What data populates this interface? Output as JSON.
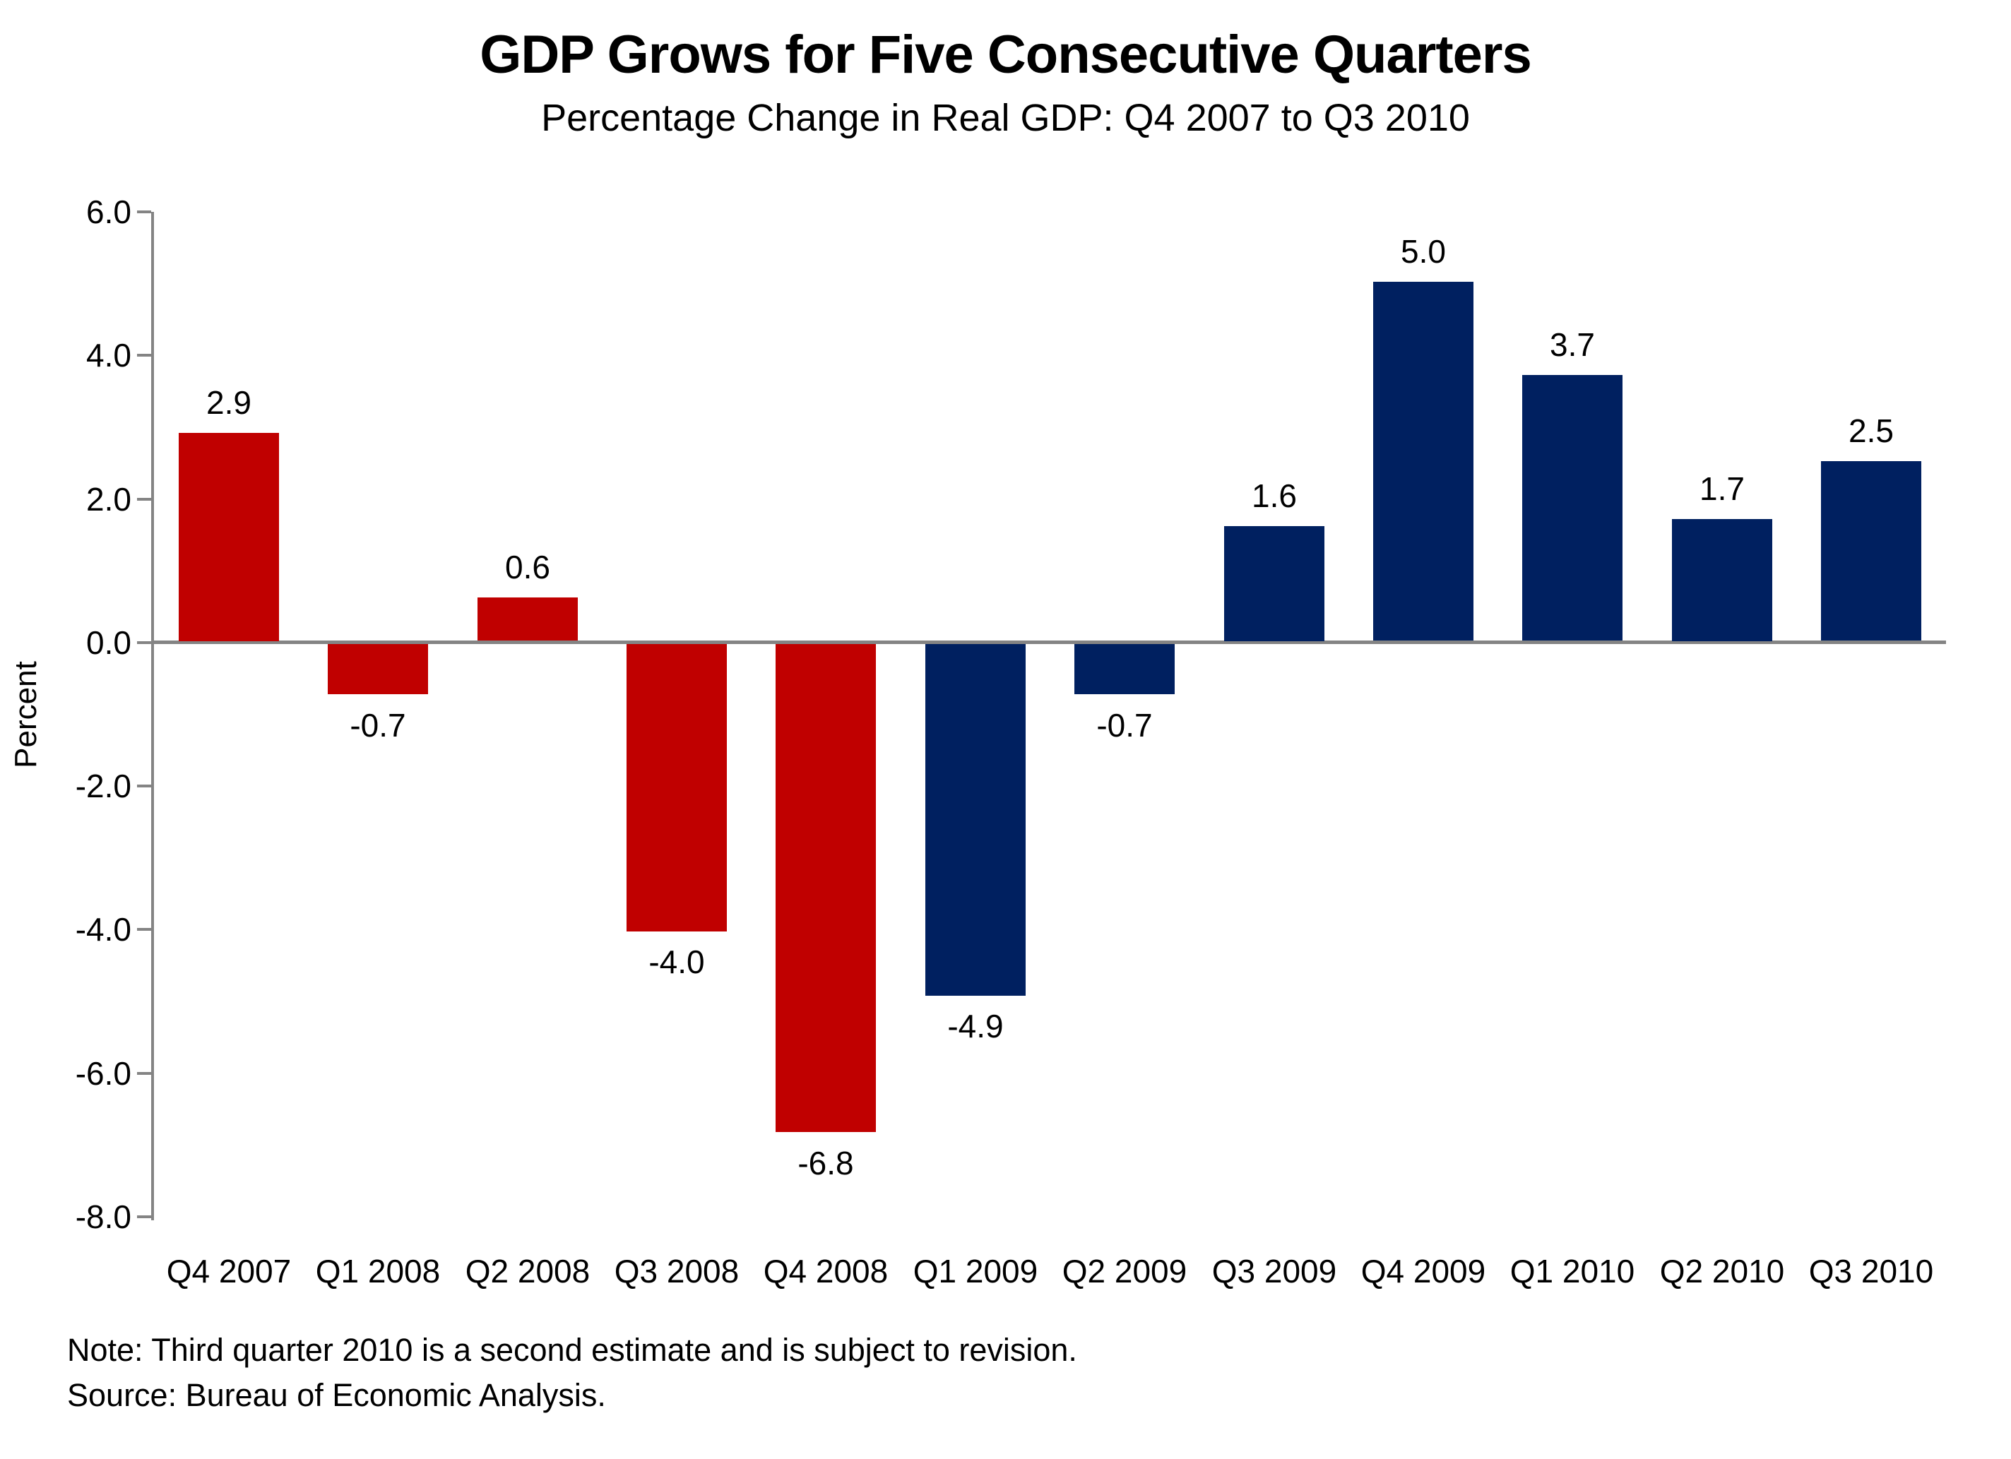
{
  "title": "GDP Grows for Five Consecutive Quarters",
  "subtitle": "Percentage Change in Real GDP: Q4 2007 to Q3 2010",
  "notes": {
    "note": "Note: Third quarter 2010 is a second estimate and is subject to revision.",
    "source": "Source: Bureau of Economic Analysis."
  },
  "chart_data": {
    "type": "bar",
    "title": "GDP Grows for Five Consecutive Quarters",
    "subtitle": "Percentage Change in Real GDP: Q4 2007 to Q3 2010",
    "categories": [
      "Q4 2007",
      "Q1 2008",
      "Q2 2008",
      "Q3 2008",
      "Q4 2008",
      "Q1 2009",
      "Q2 2009",
      "Q3 2009",
      "Q4 2009",
      "Q1 2010",
      "Q2 2010",
      "Q3 2010"
    ],
    "values": [
      2.9,
      -0.7,
      0.6,
      -4.0,
      -6.8,
      -4.9,
      -0.7,
      1.6,
      5.0,
      3.7,
      1.7,
      2.5
    ],
    "data_labels": [
      "2.9",
      "-0.7",
      "0.6",
      "-4.0",
      "-6.8",
      "-4.9",
      "-0.7",
      "1.6",
      "5.0",
      "3.7",
      "1.7",
      "2.5"
    ],
    "bar_colors": [
      "#C00000",
      "#C00000",
      "#C00000",
      "#C00000",
      "#C00000",
      "#002060",
      "#002060",
      "#002060",
      "#002060",
      "#002060",
      "#002060",
      "#002060"
    ],
    "xlabel": "",
    "ylabel": "Percent",
    "ylim": [
      -8.0,
      6.0
    ],
    "ytick_step": 2.0,
    "yticks": [
      "6.0",
      "4.0",
      "2.0",
      "0.0",
      "-2.0",
      "-4.0",
      "-6.0",
      "-8.0"
    ],
    "grid": false,
    "legend": "none",
    "colors": {
      "decline_bars": "#C00000",
      "recovery_bars": "#002060",
      "axis": "#848484",
      "text": "#000000",
      "background": "#FFFFFF"
    }
  }
}
